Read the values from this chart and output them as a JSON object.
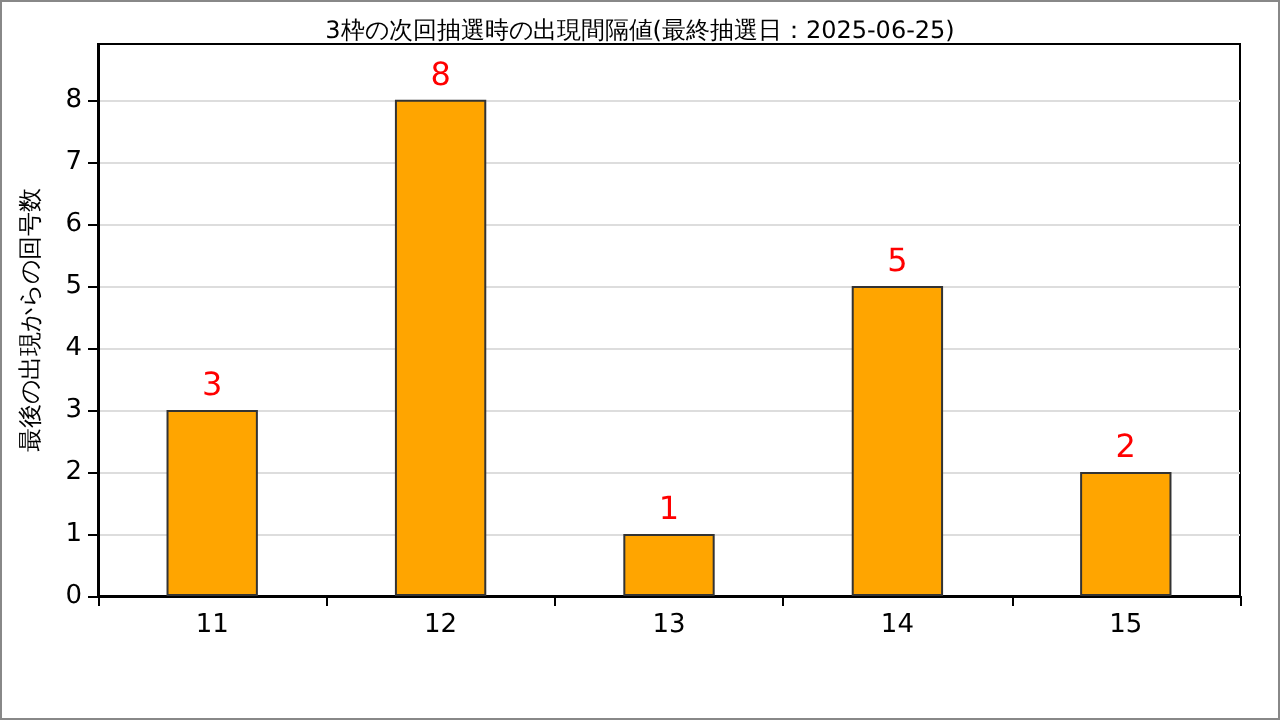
{
  "chart_data": {
    "type": "bar",
    "title": "3枠の次回抽選時の出現間隔値(最終抽選日：2025-06-25)",
    "ylabel": "最後の出現からの回号数",
    "categories": [
      "11",
      "12",
      "13",
      "14",
      "15"
    ],
    "values": [
      3,
      8,
      1,
      5,
      2
    ],
    "color": "#ffa500",
    "ylim": [
      0,
      8.9
    ],
    "yticks": [
      0,
      1,
      2,
      3,
      4,
      5,
      6,
      7,
      8
    ],
    "grid": "y",
    "data_labels": true
  }
}
